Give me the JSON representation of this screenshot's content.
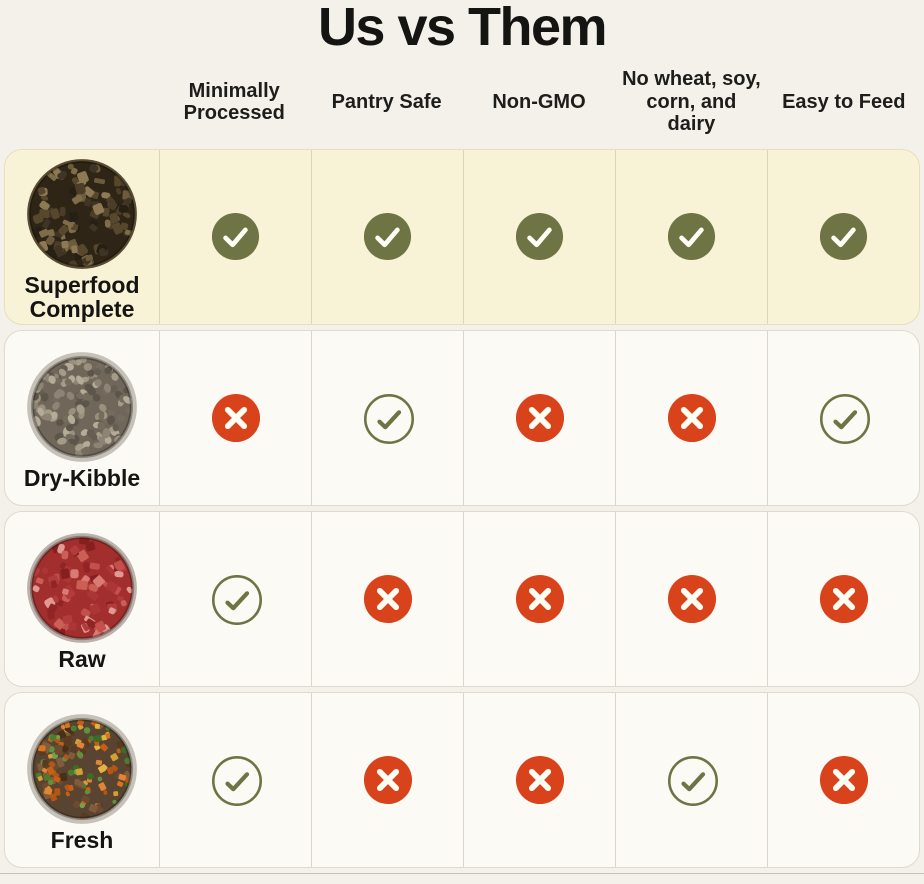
{
  "title": "Us vs Them",
  "columns": [
    "Minimally Processed",
    "Pantry Safe",
    "Non-GMO",
    "No wheat, soy, corn, and dairy",
    "Easy to Feed"
  ],
  "rows": [
    {
      "label": "Superfood Complete",
      "image": "superfood-complete-bowl",
      "food": "superfood",
      "highlight": true,
      "values": [
        "yes",
        "yes",
        "yes",
        "yes",
        "yes"
      ]
    },
    {
      "label": "Dry-Kibble",
      "image": "dry-kibble-bowl",
      "food": "kibble",
      "highlight": false,
      "values": [
        "no",
        "yes-outline",
        "no",
        "no",
        "yes-outline"
      ]
    },
    {
      "label": "Raw",
      "image": "raw-meat-bowl",
      "food": "raw",
      "highlight": false,
      "values": [
        "yes-outline",
        "no",
        "no",
        "no",
        "no"
      ]
    },
    {
      "label": "Fresh",
      "image": "fresh-food-bowl",
      "food": "fresh",
      "highlight": false,
      "values": [
        "yes-outline",
        "no",
        "no",
        "yes-outline",
        "no"
      ]
    }
  ],
  "icons": {
    "yes": "check-filled-icon",
    "yes-outline": "check-outline-icon",
    "no": "x-icon"
  },
  "colors": {
    "check_green": "#6e7443",
    "x_red": "#d9431c",
    "icon_white": "#fffef4",
    "highlight_bg": "#f8f2d7",
    "card_bg": "#fbfaf5",
    "page_bg": "#f3f1e9",
    "grid_line": "#d9d6ca",
    "text": "#141412"
  }
}
